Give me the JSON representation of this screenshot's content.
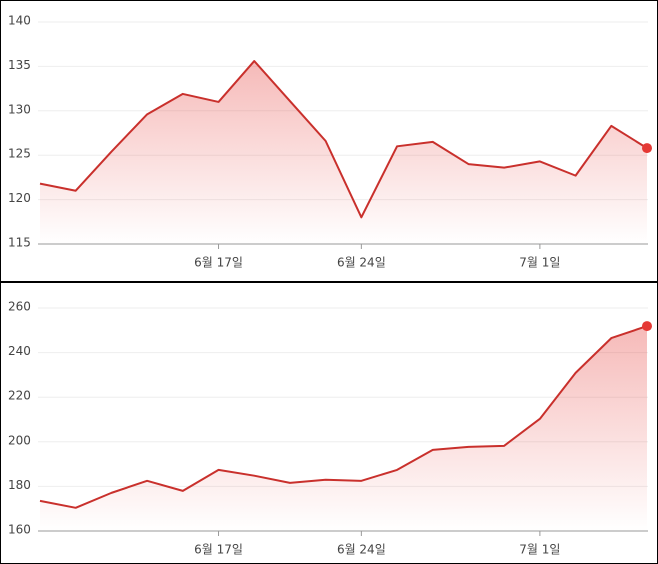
{
  "chart_data": [
    {
      "type": "line",
      "color": "#c9302c",
      "categories": [
        null,
        null,
        null,
        null,
        null,
        "6월 17일",
        null,
        null,
        null,
        "6월 24일",
        null,
        null,
        null,
        null,
        "7월 1일",
        null,
        null,
        null
      ],
      "values": [
        121.8,
        121.0,
        125.4,
        129.6,
        131.9,
        131.0,
        135.6,
        131.1,
        126.6,
        118.0,
        126.0,
        126.5,
        124.0,
        123.6,
        124.3,
        122.7,
        128.3,
        125.8
      ],
      "ylim": [
        115,
        140
      ],
      "yticks": [
        115,
        120,
        125,
        130,
        135,
        140
      ],
      "grid": true,
      "end_marker": true
    },
    {
      "type": "line",
      "color": "#c9302c",
      "categories": [
        null,
        null,
        null,
        null,
        null,
        "6월 17일",
        null,
        null,
        null,
        "6월 24일",
        null,
        null,
        null,
        null,
        "7월 1일",
        null,
        null,
        null
      ],
      "values": [
        173.5,
        170.4,
        177.1,
        182.5,
        178.0,
        187.4,
        184.8,
        181.6,
        183.0,
        182.5,
        187.4,
        196.4,
        197.7,
        198.2,
        210.3,
        230.9,
        246.5,
        251.9
      ],
      "ylim": [
        160,
        260
      ],
      "yticks": [
        160,
        180,
        200,
        220,
        240,
        260
      ],
      "grid": true,
      "end_marker": true
    }
  ]
}
